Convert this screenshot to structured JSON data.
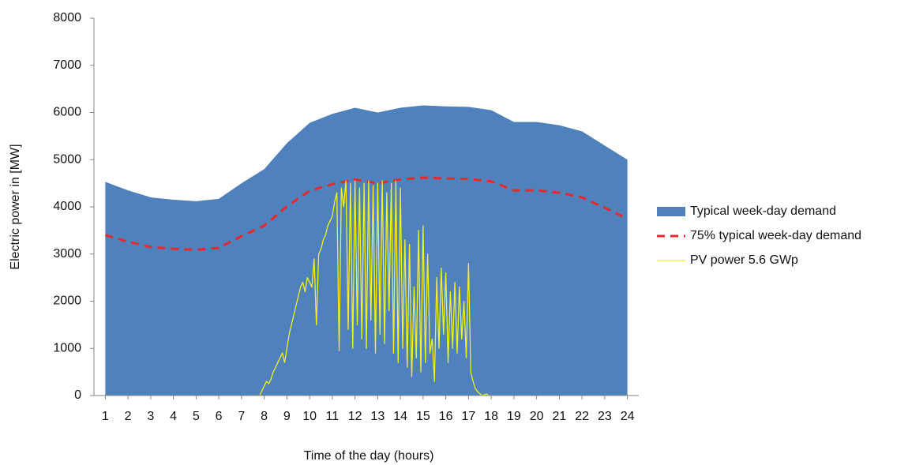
{
  "chart_data": {
    "type": "area",
    "xlabel": "Time of the day (hours)",
    "ylabel": "Electric power in [MW]",
    "xlim": [
      0.5,
      24.5
    ],
    "xticks": [
      1,
      2,
      3,
      4,
      5,
      6,
      7,
      8,
      9,
      10,
      11,
      12,
      13,
      14,
      15,
      16,
      17,
      18,
      19,
      20,
      21,
      22,
      23,
      24
    ],
    "ylim": [
      0,
      8000
    ],
    "yticks": [
      0,
      1000,
      2000,
      3000,
      4000,
      5000,
      6000,
      7000,
      8000
    ],
    "grid": false,
    "legend": "right",
    "series": [
      {
        "name": "Typical week-day demand",
        "type": "area",
        "color": "#4f81bd",
        "x": [
          1,
          2,
          3,
          4,
          5,
          6,
          7,
          8,
          9,
          10,
          11,
          12,
          13,
          14,
          15,
          16,
          17,
          18,
          19,
          20,
          21,
          22,
          23,
          24
        ],
        "values": [
          4530,
          4350,
          4200,
          4150,
          4120,
          4170,
          4500,
          4800,
          5350,
          5780,
          5970,
          6100,
          6000,
          6100,
          6150,
          6130,
          6120,
          6050,
          5800,
          5800,
          5730,
          5600,
          5300,
          5000
        ]
      },
      {
        "name": "75% typical week-day demand",
        "type": "line",
        "dashed": true,
        "color": "#e8282a",
        "x": [
          1,
          2,
          3,
          4,
          5,
          6,
          7,
          8,
          9,
          10,
          11,
          12,
          13,
          14,
          15,
          16,
          17,
          18,
          19,
          20,
          21,
          22,
          23,
          24
        ],
        "values": [
          3400,
          3260,
          3150,
          3110,
          3090,
          3130,
          3380,
          3600,
          4010,
          4340,
          4480,
          4580,
          4500,
          4580,
          4620,
          4600,
          4590,
          4540,
          4350,
          4350,
          4300,
          4200,
          3980,
          3750
        ]
      },
      {
        "name": "PV power 5.6 GWp",
        "type": "line",
        "color": "#f2f21c",
        "x": [
          7.6,
          7.7,
          7.8,
          7.9,
          8.0,
          8.1,
          8.2,
          8.3,
          8.4,
          8.5,
          8.6,
          8.7,
          8.8,
          8.9,
          9.0,
          9.1,
          9.2,
          9.3,
          9.4,
          9.5,
          9.6,
          9.7,
          9.8,
          9.9,
          10.0,
          10.1,
          10.2,
          10.3,
          10.4,
          10.5,
          10.6,
          10.7,
          10.8,
          10.9,
          11.0,
          11.1,
          11.2,
          11.3,
          11.4,
          11.5,
          11.6,
          11.7,
          11.8,
          11.9,
          12.0,
          12.1,
          12.2,
          12.3,
          12.4,
          12.5,
          12.6,
          12.7,
          12.8,
          12.9,
          13.0,
          13.1,
          13.2,
          13.3,
          13.4,
          13.5,
          13.6,
          13.7,
          13.8,
          13.9,
          14.0,
          14.1,
          14.2,
          14.3,
          14.4,
          14.5,
          14.6,
          14.7,
          14.8,
          14.9,
          15.0,
          15.1,
          15.2,
          15.3,
          15.4,
          15.5,
          15.6,
          15.7,
          15.8,
          15.9,
          16.0,
          16.1,
          16.2,
          16.3,
          16.4,
          16.5,
          16.6,
          16.7,
          16.8,
          16.9,
          17.0,
          17.1,
          17.2,
          17.3,
          17.4,
          17.5,
          17.6,
          17.7,
          17.8,
          17.9,
          18.0
        ],
        "values": [
          0,
          0,
          0,
          100,
          200,
          300,
          250,
          350,
          500,
          600,
          700,
          800,
          900,
          700,
          1000,
          1300,
          1500,
          1700,
          1900,
          2100,
          2300,
          2400,
          2200,
          2500,
          2400,
          2300,
          2900,
          1500,
          3000,
          3100,
          3300,
          3400,
          3600,
          3700,
          3800,
          4100,
          4300,
          950,
          4400,
          4000,
          4550,
          1400,
          4500,
          1000,
          4550,
          1500,
          4400,
          1200,
          4500,
          1000,
          4550,
          1600,
          4450,
          900,
          4500,
          1300,
          4550,
          1100,
          4300,
          1800,
          4500,
          900,
          4550,
          700,
          4400,
          1000,
          3300,
          600,
          3200,
          400,
          2300,
          800,
          3500,
          500,
          3600,
          700,
          3000,
          900,
          1200,
          300,
          2500,
          1000,
          2700,
          1300,
          2600,
          700,
          2200,
          1000,
          2400,
          900,
          2300,
          1200,
          2000,
          800,
          2800,
          500,
          300,
          150,
          80,
          40,
          0,
          20,
          30,
          0,
          0
        ]
      }
    ]
  }
}
